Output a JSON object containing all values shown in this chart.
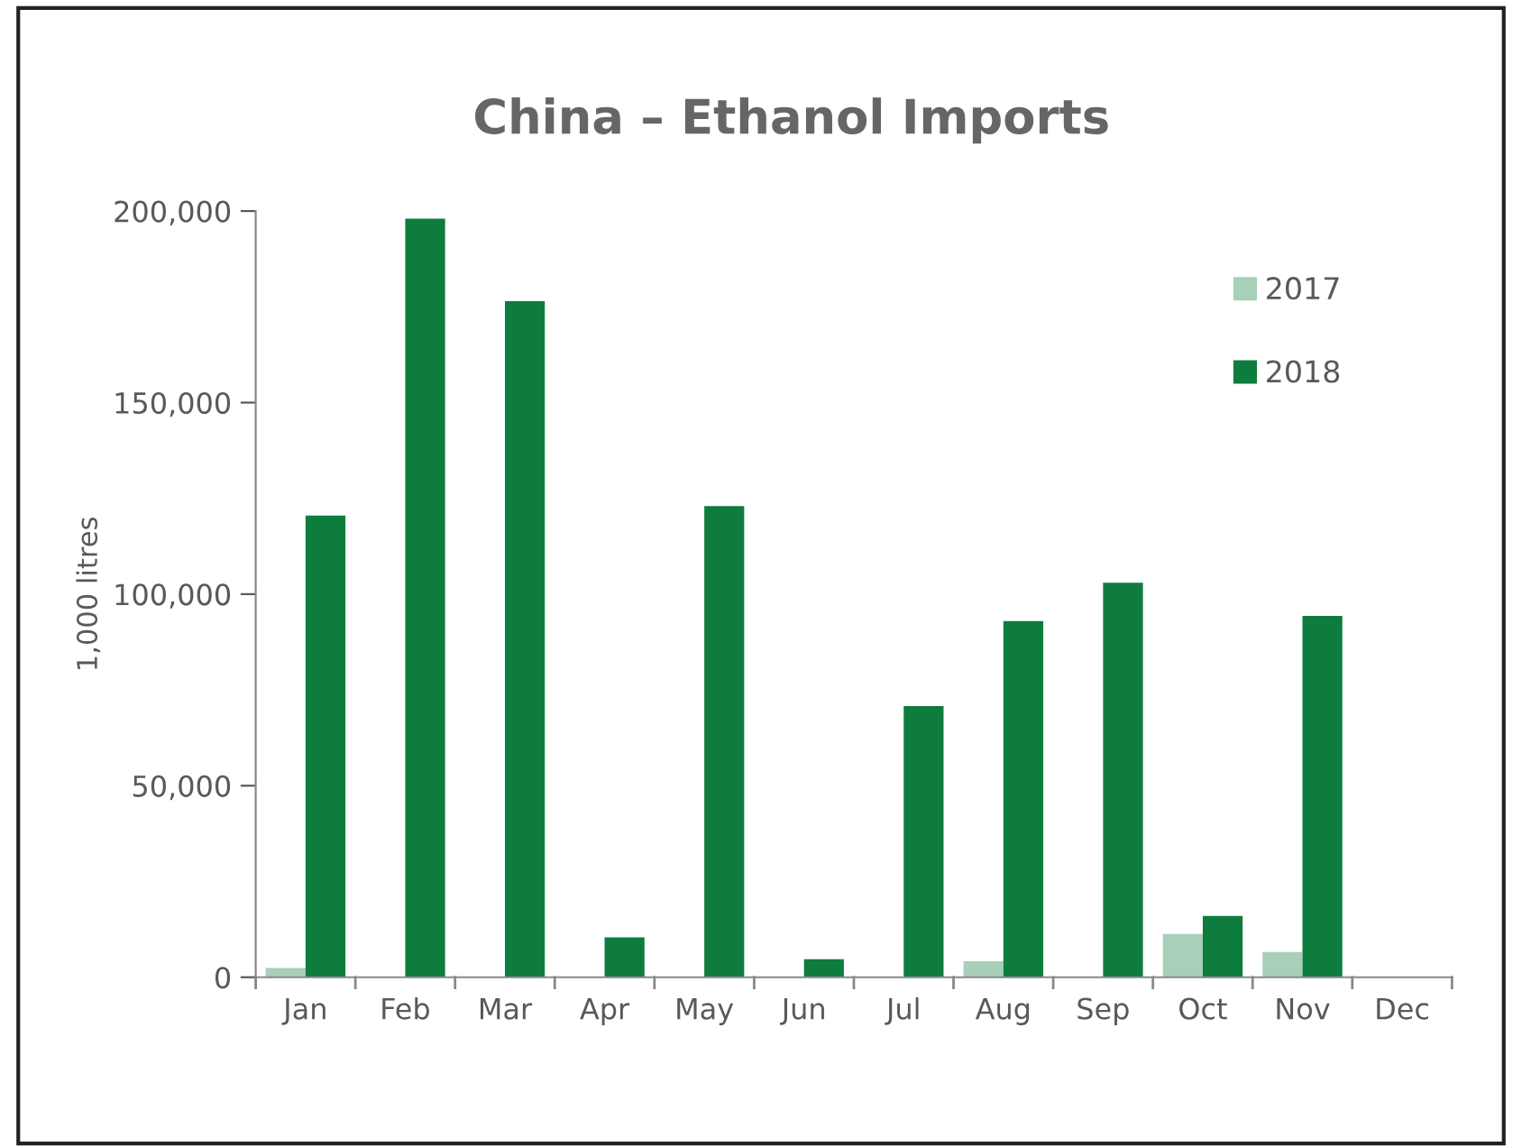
{
  "chart_data": {
    "type": "bar",
    "title": "China – Ethanol Imports",
    "ylabel": "1,000 litres",
    "categories": [
      "Jan",
      "Feb",
      "Mar",
      "Apr",
      "May",
      "Jun",
      "Jul",
      "Aug",
      "Sep",
      "Oct",
      "Nov",
      "Dec"
    ],
    "series": [
      {
        "name": "2017",
        "color": "#a8cfb8",
        "values": [
          2400,
          0,
          0,
          0,
          0,
          0,
          null,
          4200,
          null,
          11300,
          6600,
          0
        ]
      },
      {
        "name": "2018",
        "color": "#0e7c3d",
        "values": [
          120500,
          198000,
          176500,
          10400,
          123000,
          4700,
          70800,
          93000,
          103000,
          16000,
          94300,
          0
        ]
      }
    ],
    "ylim": [
      0,
      200000
    ],
    "yticks": [
      {
        "value": 0,
        "label": "0"
      },
      {
        "value": 50000,
        "label": "50,000"
      },
      {
        "value": 100000,
        "label": "100,000"
      },
      {
        "value": 150000,
        "label": "150,000"
      },
      {
        "value": 200000,
        "label": "200,000"
      }
    ],
    "grid": false,
    "legend": "top right"
  }
}
